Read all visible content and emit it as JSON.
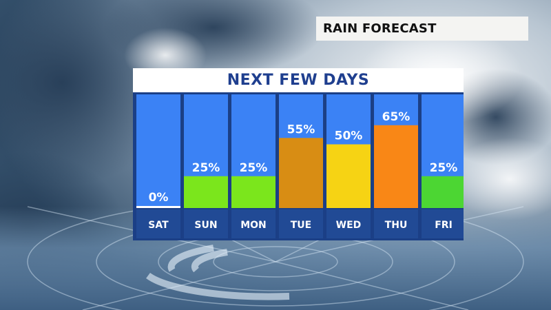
{
  "header": {
    "label": "RAIN FORECAST"
  },
  "chart_data": {
    "type": "bar",
    "title": "NEXT FEW DAYS",
    "categories": [
      "SAT",
      "SUN",
      "MON",
      "TUE",
      "WED",
      "THU",
      "FRI"
    ],
    "values": [
      0,
      25,
      25,
      55,
      50,
      65,
      25
    ],
    "value_labels": [
      "0%",
      "25%",
      "25%",
      "55%",
      "50%",
      "65%",
      "25%"
    ],
    "bar_colors": [
      "#ffffff",
      "#7be61c",
      "#7be61c",
      "#d88d14",
      "#f6d314",
      "#f98716",
      "#4cd633"
    ],
    "column_background": "#3b82f5",
    "ylim": [
      0,
      100
    ],
    "xlabel": "",
    "ylabel": ""
  }
}
